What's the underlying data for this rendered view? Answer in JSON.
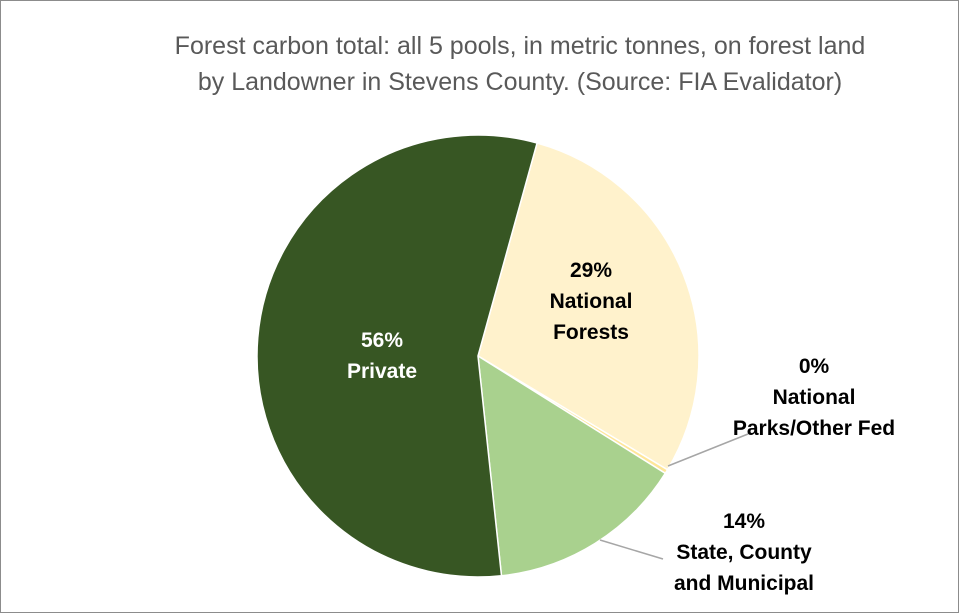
{
  "chart_data": {
    "type": "pie",
    "title": [
      "Forest carbon total: all 5 pools, in metric tonnes, on forest land",
      "by Landowner in Stevens County. (Source: FIA Evalidator)"
    ],
    "slices": [
      {
        "name": "National Forests",
        "percent_label": "29%",
        "label_lines": [
          "National",
          "Forests"
        ],
        "value": 29.3,
        "color": "#fff2cc"
      },
      {
        "name": "National Parks/Other Fed",
        "percent_label": "0%",
        "label_lines": [
          "National",
          "Parks/Other Fed"
        ],
        "value": 0.3,
        "color": "#ffe699"
      },
      {
        "name": "State, County and Municipal",
        "percent_label": "14%",
        "label_lines": [
          "State, County",
          "and Municipal"
        ],
        "value": 14.4,
        "color": "#a9d18e"
      },
      {
        "name": "Private",
        "percent_label": "56%",
        "label_lines": [
          "Private"
        ],
        "value": 56.0,
        "color": "#375623"
      }
    ],
    "start_angle_deg": 15.5,
    "label_colors": {
      "inside_light": "#000000",
      "inside_dark": "#ffffff",
      "outside": "#000000"
    },
    "leader_line_color": "#a6a6a6"
  }
}
